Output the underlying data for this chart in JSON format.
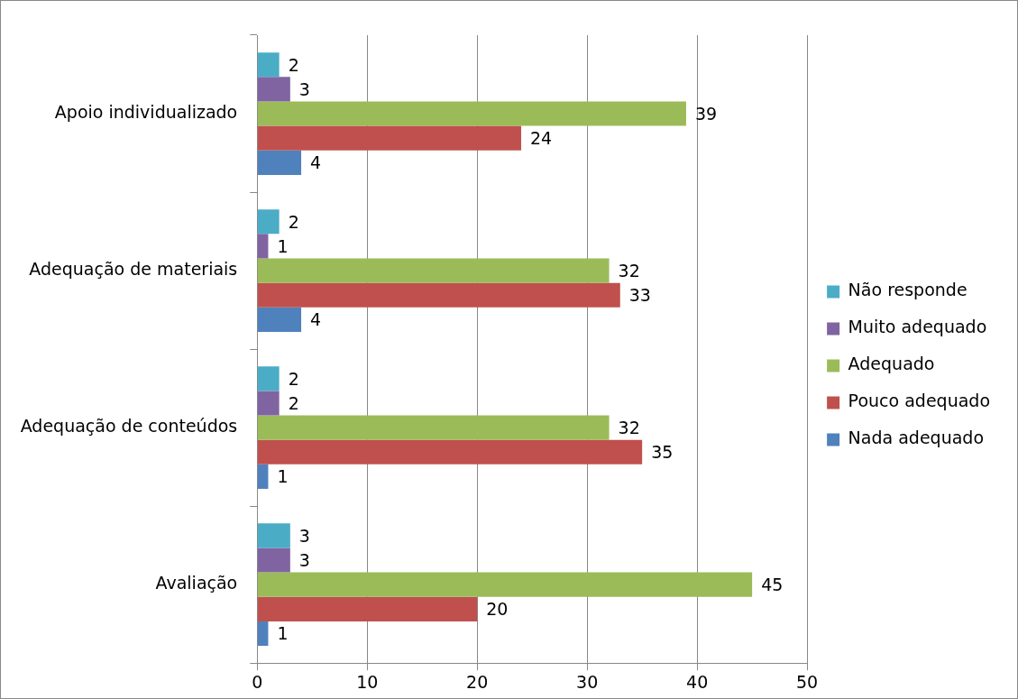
{
  "chart_data": {
    "type": "bar",
    "orientation": "horizontal",
    "categories": [
      "Apoio individualizado",
      "Adequação de materiais",
      "Adequação de conteúdos",
      "Avaliação"
    ],
    "series": [
      {
        "name": "Não responde",
        "color": "#4bacc6",
        "values": [
          2,
          2,
          2,
          3
        ]
      },
      {
        "name": "Muito adequado",
        "color": "#8064a2",
        "values": [
          3,
          1,
          2,
          3
        ]
      },
      {
        "name": "Adequado",
        "color": "#9bbb59",
        "values": [
          39,
          32,
          32,
          45
        ]
      },
      {
        "name": "Pouco adequado",
        "color": "#c0504d",
        "values": [
          24,
          33,
          35,
          20
        ]
      },
      {
        "name": "Nada adequado",
        "color": "#4f81bd",
        "values": [
          4,
          4,
          1,
          1
        ]
      }
    ],
    "xlim": [
      0,
      50
    ],
    "xticks": [
      0,
      10,
      20,
      30,
      40,
      50
    ],
    "grid": "x",
    "legend": "right",
    "data_labels": true
  }
}
